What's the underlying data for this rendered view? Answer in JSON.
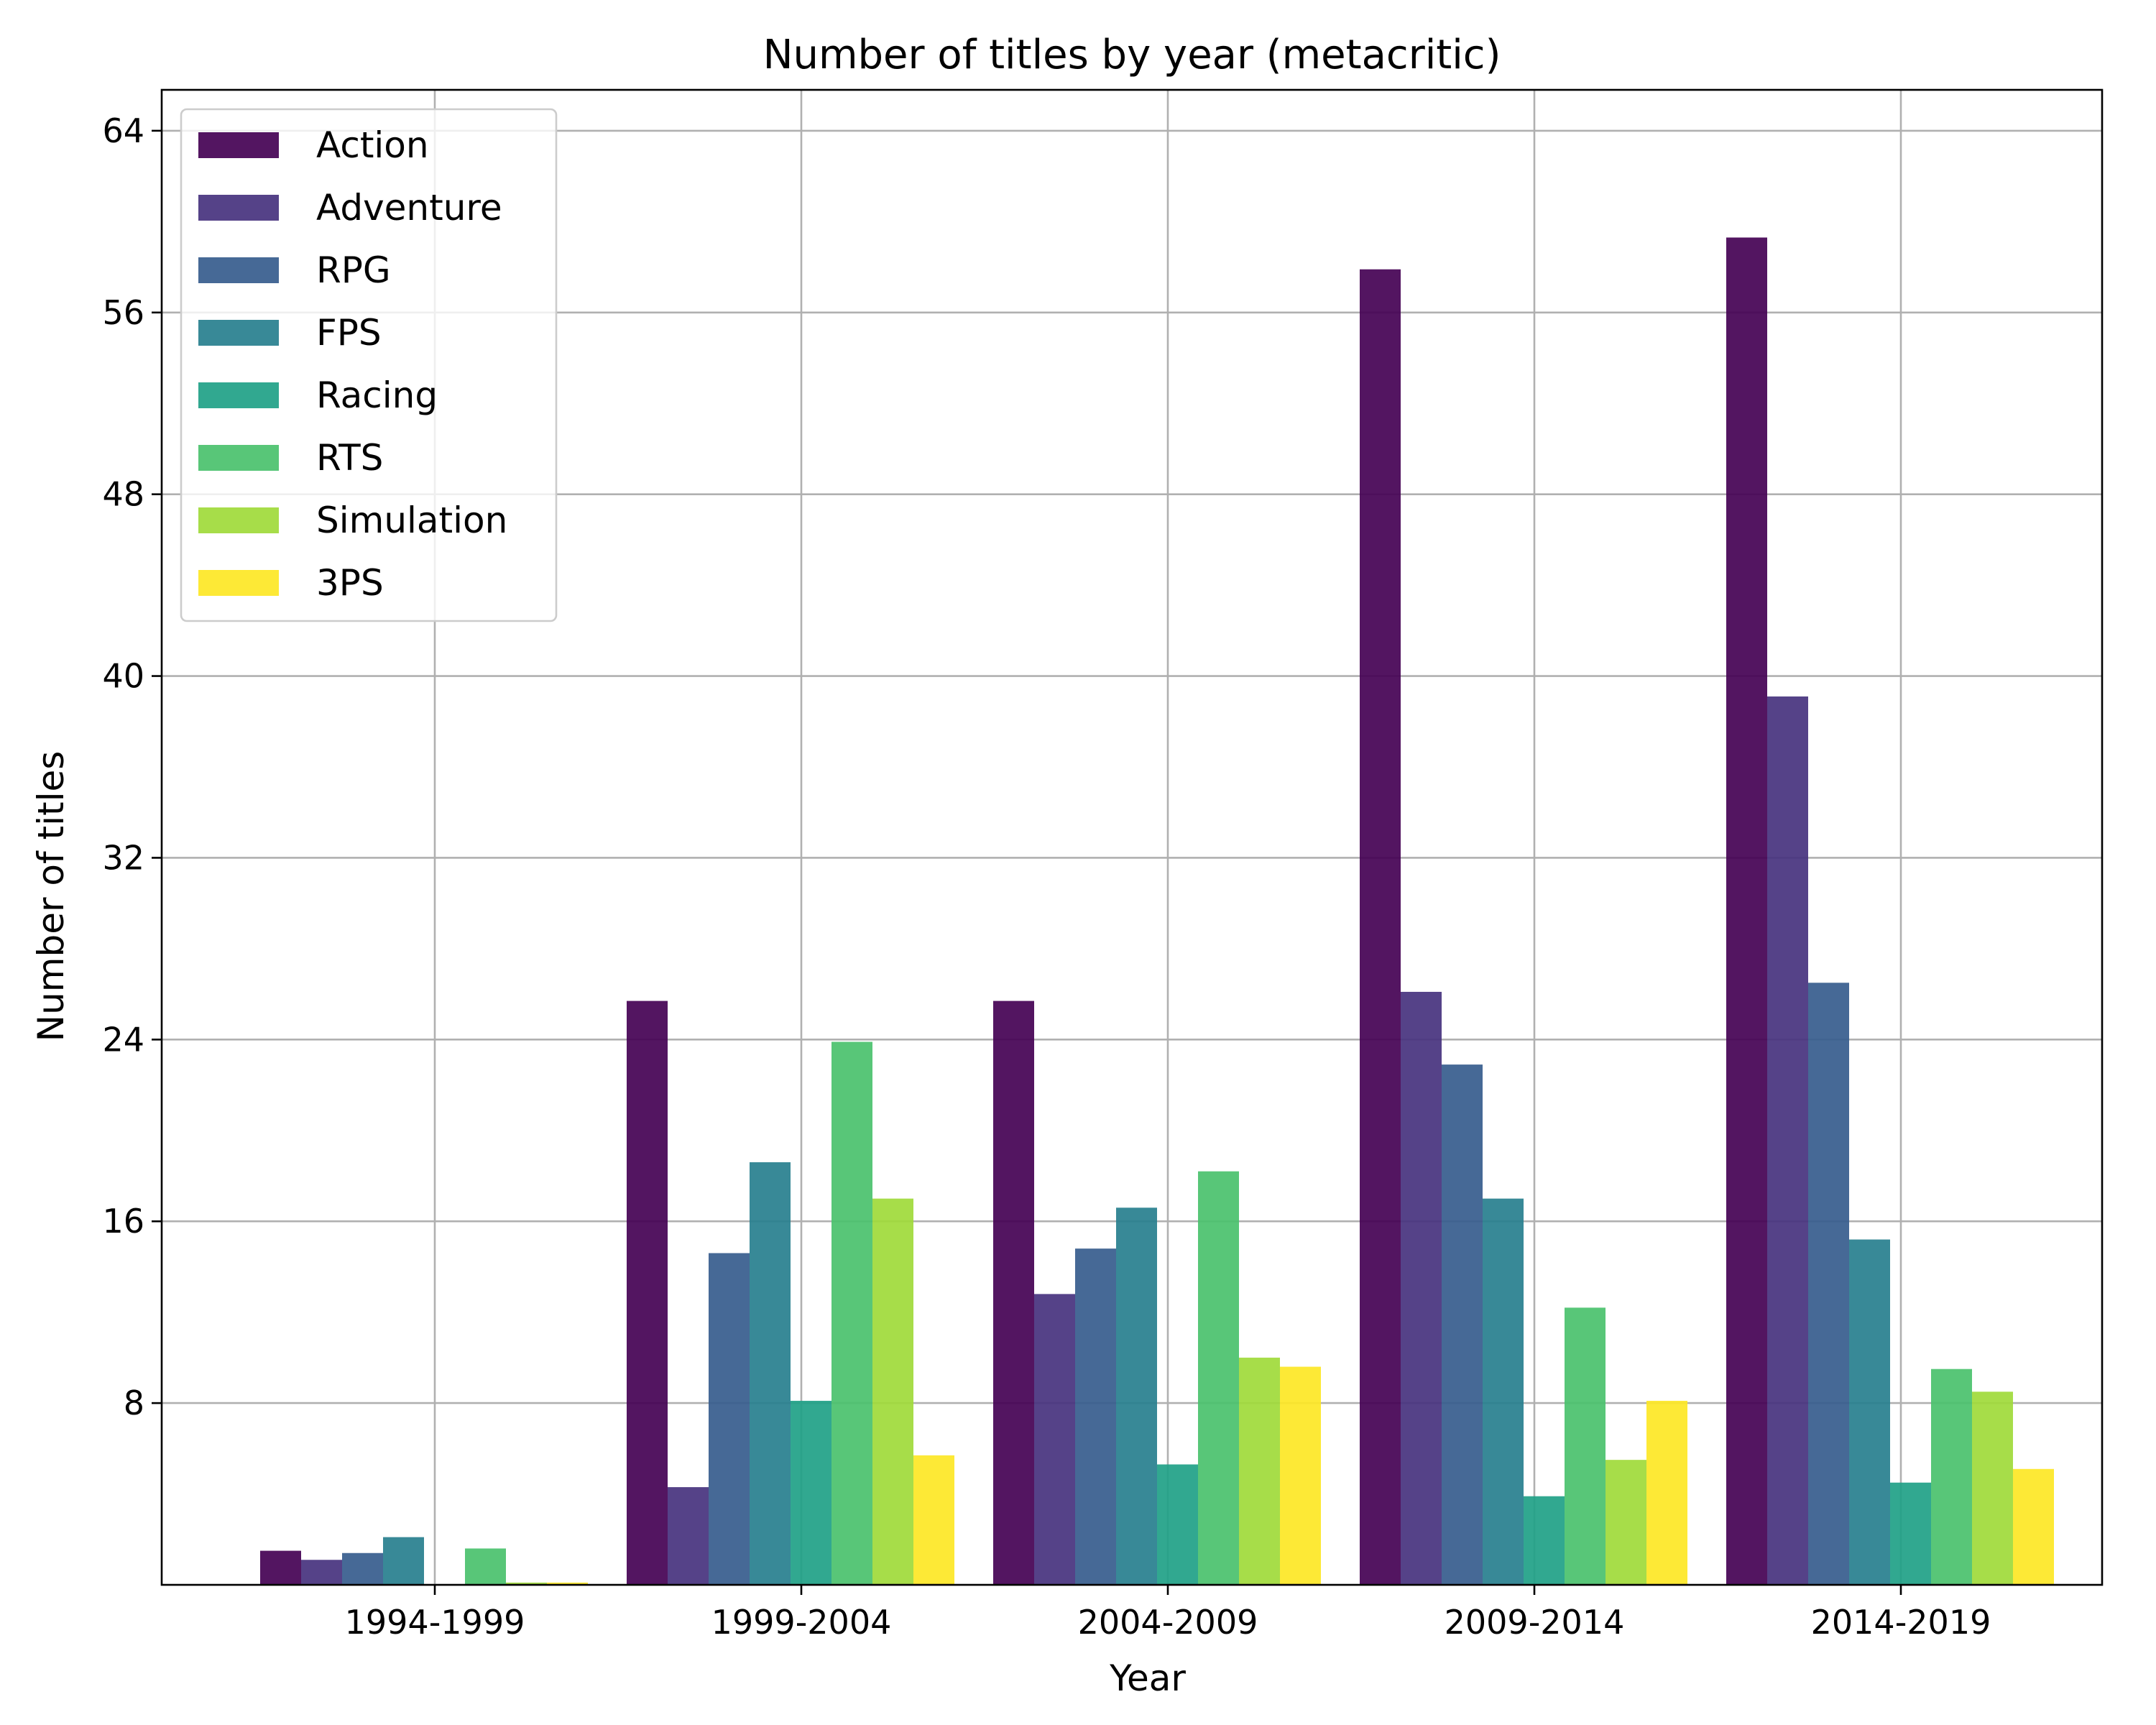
{
  "chart_data": {
    "type": "bar",
    "title": "Number of titles by year (metacritic)",
    "xlabel": "Year",
    "ylabel": "Number of titles",
    "categories": [
      "1994-1999",
      "1999-2004",
      "2004-2009",
      "2009-2014",
      "2014-2019"
    ],
    "ylim": [
      0,
      65.8
    ],
    "yticks": [
      8,
      16,
      24,
      32,
      40,
      48,
      56,
      64
    ],
    "grid": true,
    "legend_position": "top-left",
    "series": [
      {
        "name": "Action",
        "color": "#440154",
        "values": [
          1.5,
          25.7,
          25.7,
          57.9,
          59.3
        ]
      },
      {
        "name": "Adventure",
        "color": "#46327e",
        "values": [
          1.1,
          4.3,
          12.8,
          26.1,
          39.1
        ]
      },
      {
        "name": "RPG",
        "color": "#365c8d",
        "values": [
          1.4,
          14.6,
          14.8,
          22.9,
          26.5
        ]
      },
      {
        "name": "FPS",
        "color": "#277f8e",
        "values": [
          2.1,
          18.6,
          16.6,
          17.0,
          15.2
        ]
      },
      {
        "name": "Racing",
        "color": "#1fa187",
        "values": [
          0.0,
          8.1,
          5.3,
          3.9,
          4.5
        ]
      },
      {
        "name": "RTS",
        "color": "#4ac16d",
        "values": [
          1.6,
          23.9,
          18.2,
          12.2,
          9.5
        ]
      },
      {
        "name": "Simulation",
        "color": "#a0da39",
        "values": [
          0.1,
          17.0,
          10.0,
          5.5,
          8.5
        ]
      },
      {
        "name": "3PS",
        "color": "#fde725",
        "values": [
          0.1,
          5.7,
          9.6,
          8.1,
          5.1
        ]
      }
    ]
  }
}
